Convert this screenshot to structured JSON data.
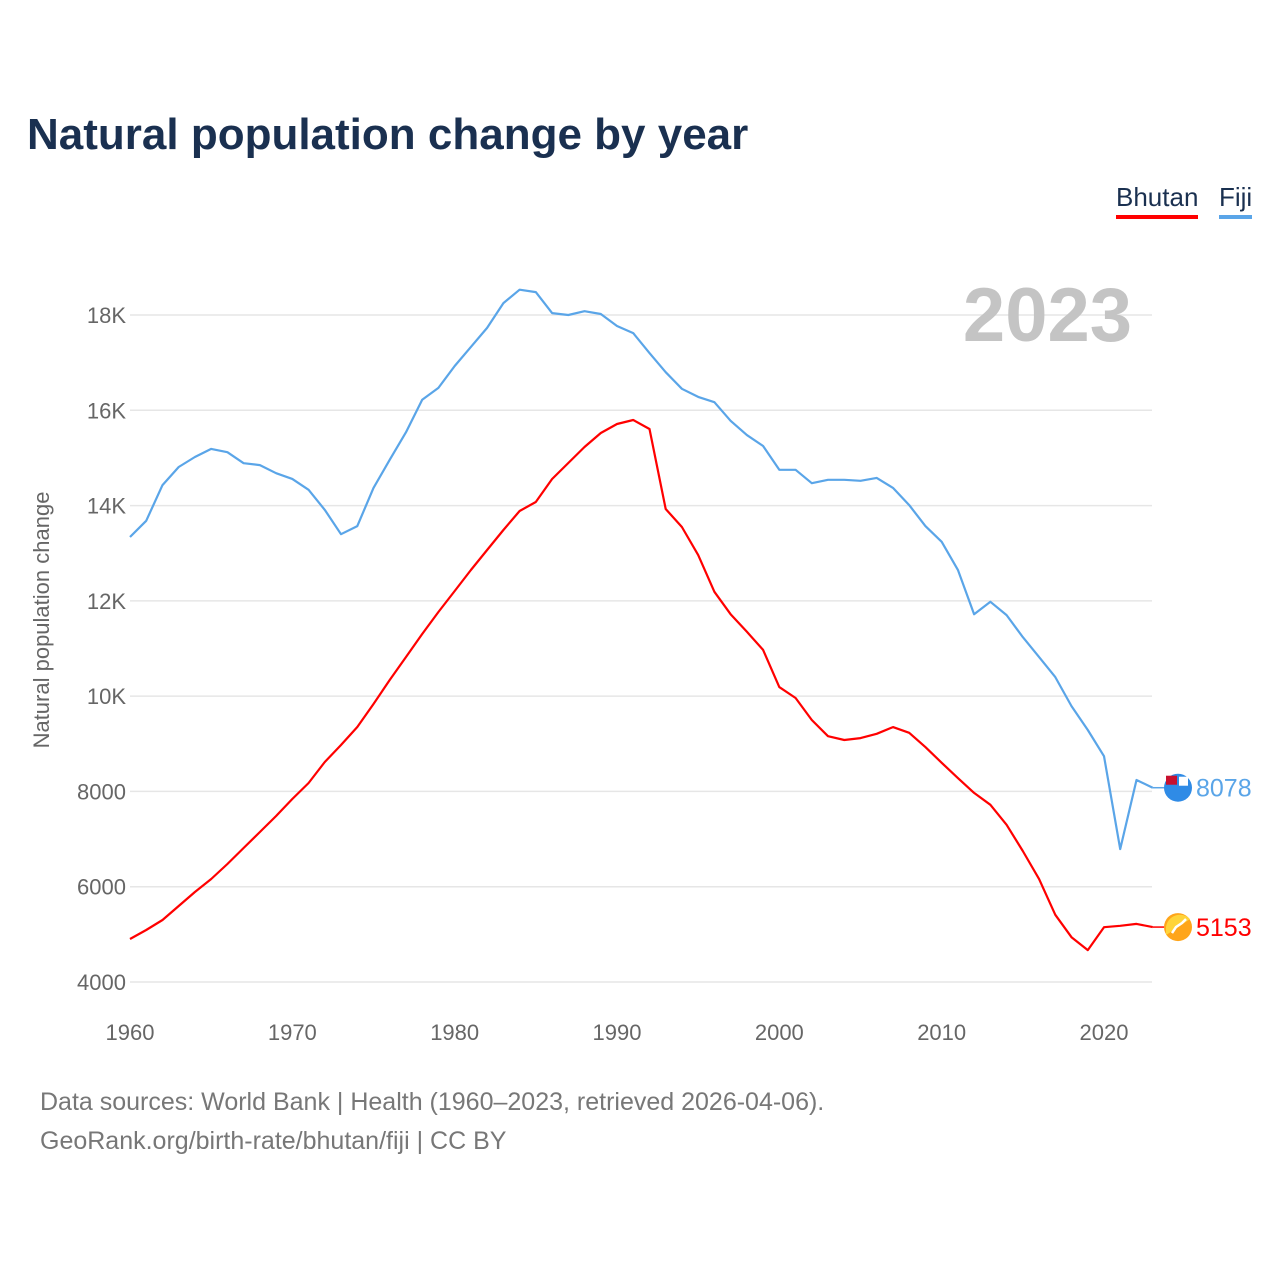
{
  "title": "Natural population change by year",
  "legend": [
    {
      "label": "Bhutan",
      "color": "#ff0000"
    },
    {
      "label": "Fiji",
      "color": "#5aa5e8"
    }
  ],
  "year_display": "2023",
  "footer": {
    "line1": "Data sources: World Bank | Health (1960–2023, retrieved 2026-04-06).",
    "line2": "GeoRank.org/birth-rate/bhutan/fiji | CC BY"
  },
  "chart_data": {
    "type": "line",
    "title": "Natural population change by year",
    "xlabel": "",
    "ylabel": "Natural population change",
    "xlim": [
      1960,
      2023
    ],
    "ylim": [
      4000,
      18000
    ],
    "x_ticks": [
      1960,
      1970,
      1980,
      1990,
      2000,
      2010,
      2020
    ],
    "y_ticks": [
      4000,
      6000,
      8000,
      10000,
      12000,
      14000,
      16000,
      18000
    ],
    "y_tick_labels": [
      "4000",
      "6000",
      "8000",
      "10K",
      "12K",
      "14K",
      "16K",
      "18K"
    ],
    "grid": true,
    "legend_position": "top-right",
    "x": [
      1960,
      1961,
      1962,
      1963,
      1964,
      1965,
      1966,
      1967,
      1968,
      1969,
      1970,
      1971,
      1972,
      1973,
      1974,
      1975,
      1976,
      1977,
      1978,
      1979,
      1980,
      1981,
      1982,
      1983,
      1984,
      1985,
      1986,
      1987,
      1988,
      1989,
      1990,
      1991,
      1992,
      1993,
      1994,
      1995,
      1996,
      1997,
      1998,
      1999,
      2000,
      2001,
      2002,
      2003,
      2004,
      2005,
      2006,
      2007,
      2008,
      2009,
      2010,
      2011,
      2012,
      2013,
      2014,
      2015,
      2016,
      2017,
      2018,
      2019,
      2020,
      2021,
      2022,
      2023
    ],
    "series": [
      {
        "name": "Bhutan",
        "color": "#ff0000",
        "end_label": "5153",
        "values": [
          4903,
          5091,
          5301,
          5595,
          5889,
          6162,
          6477,
          6813,
          7149,
          7484,
          7841,
          8177,
          8618,
          8975,
          9352,
          9835,
          10339,
          10822,
          11305,
          11766,
          12207,
          12648,
          13068,
          13487,
          13886,
          14075,
          14558,
          14894,
          15230,
          15523,
          15712,
          15796,
          15607,
          13928,
          13550,
          12960,
          12190,
          11720,
          11350,
          10970,
          10190,
          9960,
          9500,
          9160,
          9080,
          9120,
          9210,
          9350,
          9230,
          8930,
          8600,
          8280,
          7970,
          7720,
          7300,
          6750,
          6160,
          5410,
          4940,
          4670,
          5150,
          5180,
          5220,
          5153
        ]
      },
      {
        "name": "Fiji",
        "color": "#5aa5e8",
        "end_label": "8078",
        "values": [
          13340,
          13680,
          14430,
          14810,
          15020,
          15190,
          15120,
          14890,
          14850,
          14680,
          14560,
          14330,
          13910,
          13400,
          13570,
          14370,
          14960,
          15540,
          16220,
          16470,
          16930,
          17330,
          17730,
          18250,
          18530,
          18480,
          18040,
          18000,
          18080,
          18020,
          17770,
          17620,
          17200,
          16800,
          16450,
          16280,
          16170,
          15780,
          15480,
          15250,
          14750,
          14750,
          14470,
          14540,
          14540,
          14520,
          14580,
          14370,
          14010,
          13570,
          13240,
          12650,
          11720,
          11980,
          11700,
          11240,
          10820,
          10400,
          9790,
          9290,
          8740,
          6790,
          8240,
          8078
        ]
      }
    ]
  }
}
